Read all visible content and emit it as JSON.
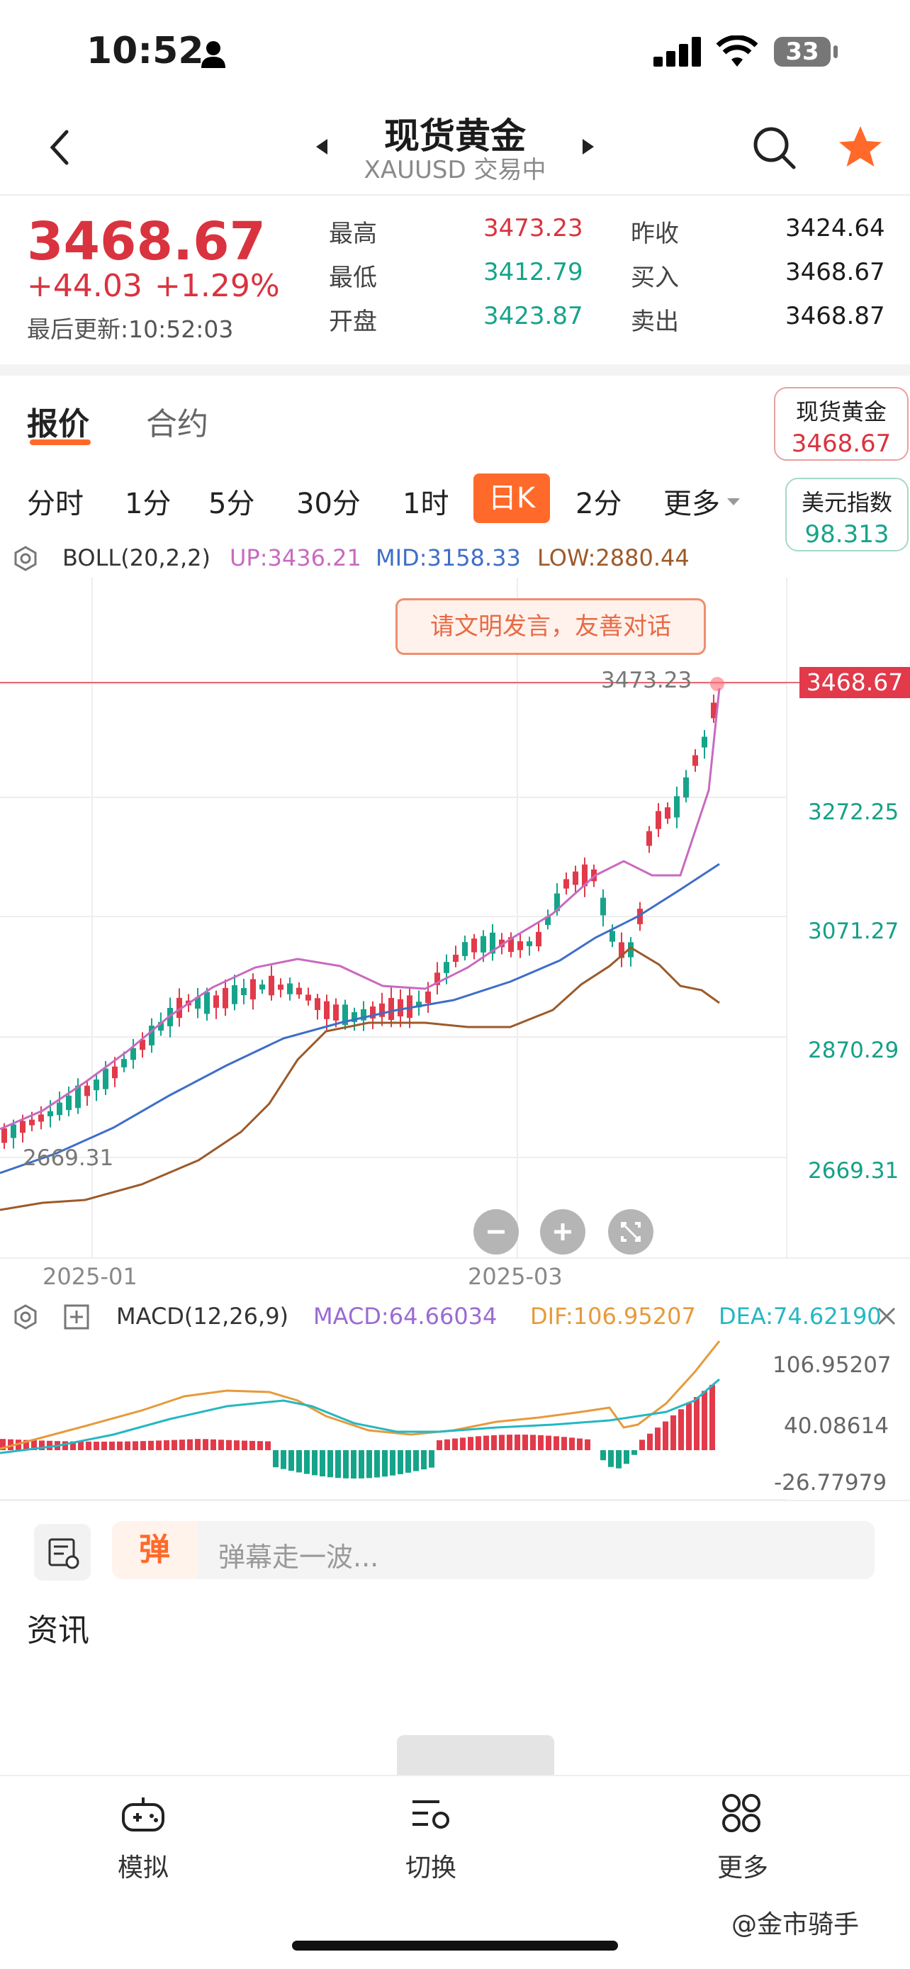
{
  "status_bar": {
    "time": "10:52",
    "battery": "33"
  },
  "header": {
    "title": "现货黄金",
    "subtitle": "XAUUSD 交易中"
  },
  "quote": {
    "price": "3468.67",
    "change": "+44.03",
    "change_pct": "+1.29%",
    "updated": "最后更新:10:52:03",
    "stats": [
      {
        "label": "最高",
        "value": "3473.23"
      },
      {
        "label": "最低",
        "value": "3412.79"
      },
      {
        "label": "开盘",
        "value": "3423.87"
      },
      {
        "label": "昨收",
        "value": "3424.64"
      },
      {
        "label": "买入",
        "value": "3468.67"
      },
      {
        "label": "卖出",
        "value": "3468.87"
      }
    ]
  },
  "tabs": {
    "quote": "报价",
    "contract": "合约"
  },
  "side_cards": [
    {
      "name": "现货黄金",
      "value": "3468.67"
    },
    {
      "name": "美元指数",
      "value": "98.313"
    }
  ],
  "periods": [
    "分时",
    "1分",
    "5分",
    "30分",
    "1时",
    "日K",
    "2分",
    "更多"
  ],
  "boll": {
    "label": "BOLL(20,2,2)",
    "up": "UP:3436.21",
    "mid": "MID:3158.33",
    "low": "LOW:2880.44"
  },
  "notice": "请文明发言，友善对话",
  "price_axis": [
    "3272.25",
    "3071.27",
    "2870.29",
    "2669.31"
  ],
  "current_price_tag": "3468.67",
  "high_marker": "3473.23",
  "low_marker": "2669.31",
  "date_axis": [
    "2025-01",
    "2025-03"
  ],
  "macd": {
    "label": "MACD(12,26,9)",
    "macd": "MACD:64.66034",
    "dif": "DIF:106.95207",
    "dea": "DEA:74.62190"
  },
  "macd_axis": [
    "106.95207",
    "40.08614",
    "-26.77979"
  ],
  "comment": {
    "badge": "弹",
    "placeholder": "弹幕走一波..."
  },
  "news": {
    "title": "资讯"
  },
  "bottom_nav": [
    {
      "label": "模拟",
      "icon": "gamepad-icon"
    },
    {
      "label": "切换",
      "icon": "switch-icon"
    },
    {
      "label": "更多",
      "icon": "grid-icon"
    }
  ],
  "watermark": "@金市骑手",
  "chart_data": {
    "type": "candlestick",
    "xlabels": [
      "2025-01",
      "2025-03"
    ],
    "y_ticks": [
      3272.25,
      3071.27,
      2870.29,
      2669.31
    ],
    "series": [
      {
        "name": "UP",
        "color": "#c86ac0"
      },
      {
        "name": "MID",
        "color": "#3e6ec8"
      },
      {
        "name": "LOW",
        "color": "#9c5a2a"
      }
    ]
  }
}
